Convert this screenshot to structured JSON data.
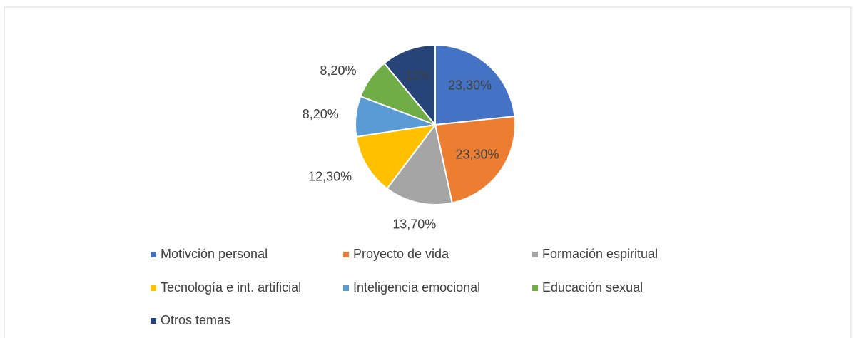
{
  "chart_data": {
    "type": "pie",
    "categories": [
      "Motivción personal",
      "Proyecto de vida",
      "Formación espiritual",
      "Tecnología e int. artificial",
      "Inteligencia emocional",
      "Educación sexual",
      "Otros temas"
    ],
    "values": [
      23.3,
      23.3,
      13.7,
      12.3,
      8.2,
      8.2,
      11
    ],
    "value_labels": [
      "23,30%",
      "23,30%",
      "13,70%",
      "12,30%",
      "8,20%",
      "8,20%",
      "11%"
    ],
    "colors": [
      "#4472c4",
      "#ed7d31",
      "#a5a5a5",
      "#ffc000",
      "#5b9bd5",
      "#70ad47",
      "#264478"
    ],
    "legend": "bottom"
  }
}
